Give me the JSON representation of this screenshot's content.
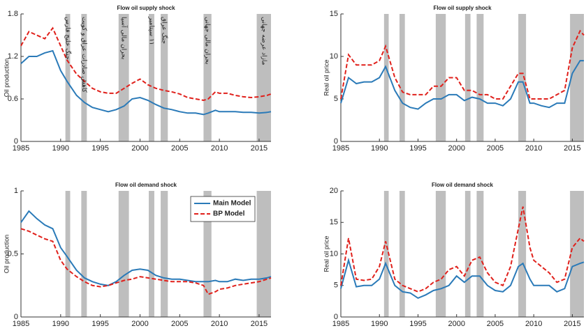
{
  "chart_data": [
    {
      "type": "line",
      "title": "Flow oil supply shock",
      "y_label": "Oil production",
      "x": [
        1985,
        1986,
        1987,
        1988,
        1989,
        1990,
        1990.8,
        1992,
        1993,
        1994,
        1995,
        1996,
        1997,
        1998,
        1999,
        2000,
        2001,
        2002,
        2003,
        2004,
        2005,
        2006,
        2007,
        2008,
        2008.6,
        2009.5,
        2010,
        2011,
        2012,
        2013,
        2014,
        2015,
        2016,
        2016.5
      ],
      "xlim": [
        1985,
        2016.5
      ],
      "xticks": [
        1985,
        1990,
        1995,
        2000,
        2005,
        2010,
        2015
      ],
      "ylim": [
        0,
        1.8
      ],
      "yticks": [
        0,
        0.6,
        1.2,
        1.8
      ],
      "shaded_periods": [
        [
          1990.6,
          1991.2
        ],
        [
          1992.6,
          1993.3
        ],
        [
          1997.3,
          1998.6
        ],
        [
          2001.1,
          2001.8
        ],
        [
          2002.6,
          2003.5
        ],
        [
          2008.0,
          2009.0
        ],
        [
          2014.7,
          2016.5
        ]
      ],
      "annotations": [
        "جنگ خلیج فارس",
        "کاهش صادرات عراق و کویت",
        "بحران مالی آسیا",
        "۱۱ سپتامبر",
        "جنگ عراق",
        "بحران مالی جهانی",
        "مازاد عرضه جهانی"
      ],
      "series": [
        {
          "color": "#2a7ab8",
          "style": "solid",
          "values": [
            1.1,
            1.2,
            1.2,
            1.25,
            1.28,
            1.0,
            0.85,
            0.65,
            0.55,
            0.48,
            0.45,
            0.42,
            0.45,
            0.5,
            0.6,
            0.62,
            0.58,
            0.52,
            0.47,
            0.45,
            0.42,
            0.4,
            0.4,
            0.38,
            0.4,
            0.44,
            0.42,
            0.42,
            0.42,
            0.41,
            0.41,
            0.4,
            0.41,
            0.42
          ]
        },
        {
          "color": "#e0201b",
          "style": "dashed",
          "values": [
            1.35,
            1.55,
            1.5,
            1.45,
            1.6,
            1.35,
            1.15,
            0.95,
            0.85,
            0.75,
            0.7,
            0.68,
            0.68,
            0.75,
            0.82,
            0.88,
            0.8,
            0.75,
            0.72,
            0.7,
            0.67,
            0.62,
            0.6,
            0.58,
            0.6,
            0.7,
            0.68,
            0.68,
            0.65,
            0.63,
            0.62,
            0.63,
            0.65,
            0.67
          ]
        }
      ]
    },
    {
      "type": "line",
      "title": "Flow oil supply shock",
      "y_label": "Real oil price",
      "x": [
        1985,
        1986,
        1987,
        1988,
        1989,
        1990,
        1990.8,
        1992,
        1993,
        1994,
        1995,
        1996,
        1997,
        1998,
        1999,
        2000,
        2001,
        2002,
        2003,
        2004,
        2005,
        2006,
        2007,
        2008,
        2008.6,
        2009.5,
        2010,
        2011,
        2012,
        2013,
        2014,
        2015,
        2016,
        2016.5
      ],
      "xlim": [
        1985,
        2016.5
      ],
      "xticks": [
        1985,
        1990,
        1995,
        2000,
        2005,
        2010,
        2015
      ],
      "ylim": [
        0,
        15
      ],
      "yticks": [
        0,
        5,
        10,
        15
      ],
      "shaded_periods": [
        [
          1990.6,
          1991.2
        ],
        [
          1992.6,
          1993.3
        ],
        [
          1997.3,
          1998.6
        ],
        [
          2001.1,
          2001.8
        ],
        [
          2002.6,
          2003.5
        ],
        [
          2008.0,
          2009.0
        ],
        [
          2014.7,
          2016.5
        ]
      ],
      "series": [
        {
          "color": "#2a7ab8",
          "style": "solid",
          "values": [
            4.5,
            7.5,
            6.8,
            7,
            7,
            7.5,
            8.8,
            6,
            4.5,
            4,
            3.8,
            4.5,
            5,
            5,
            5.5,
            5.5,
            4.8,
            5.2,
            5,
            4.5,
            4.5,
            4.2,
            5,
            7,
            7,
            4.5,
            4.5,
            4.2,
            4,
            4.5,
            4.5,
            8,
            9.5,
            9.5
          ]
        },
        {
          "color": "#e0201b",
          "style": "dashed",
          "values": [
            5,
            10.2,
            9,
            9,
            9,
            9.5,
            11.2,
            7.5,
            5.8,
            5.5,
            5.5,
            5.5,
            6.5,
            6.5,
            7.5,
            7.5,
            6,
            6,
            5.5,
            5.5,
            5,
            5,
            6.5,
            8,
            8,
            5,
            5,
            5,
            5,
            5.5,
            6,
            11,
            13,
            12.5
          ]
        }
      ]
    },
    {
      "type": "line",
      "title": "Flow oil demand shock",
      "y_label": "Oil production",
      "legend": true,
      "x": [
        1985,
        1986,
        1987,
        1988,
        1989,
        1990,
        1990.8,
        1992,
        1993,
        1994,
        1995,
        1996,
        1997,
        1998,
        1999,
        2000,
        2001,
        2002,
        2003,
        2004,
        2005,
        2006,
        2007,
        2008,
        2008.6,
        2009.5,
        2010,
        2011,
        2012,
        2013,
        2014,
        2015,
        2016,
        2016.5
      ],
      "xlim": [
        1985,
        2016.5
      ],
      "xticks": [
        1985,
        1990,
        1995,
        2000,
        2005,
        2010,
        2015
      ],
      "ylim": [
        0,
        1
      ],
      "yticks": [
        0,
        0.5,
        1
      ],
      "shaded_periods": [
        [
          1990.6,
          1991.2
        ],
        [
          1992.6,
          1993.3
        ],
        [
          1997.3,
          1998.6
        ],
        [
          2001.1,
          2001.8
        ],
        [
          2002.6,
          2003.5
        ],
        [
          2008.0,
          2009.0
        ],
        [
          2014.7,
          2016.5
        ]
      ],
      "series": [
        {
          "name": "Main Model",
          "color": "#2a7ab8",
          "style": "solid",
          "values": [
            0.75,
            0.84,
            0.78,
            0.73,
            0.7,
            0.55,
            0.48,
            0.37,
            0.31,
            0.28,
            0.26,
            0.25,
            0.28,
            0.33,
            0.37,
            0.38,
            0.37,
            0.33,
            0.31,
            0.3,
            0.3,
            0.29,
            0.28,
            0.28,
            0.28,
            0.29,
            0.28,
            0.28,
            0.3,
            0.29,
            0.3,
            0.3,
            0.31,
            0.32
          ]
        },
        {
          "name": "BP Model",
          "color": "#e0201b",
          "style": "dashed",
          "values": [
            0.7,
            0.68,
            0.65,
            0.62,
            0.6,
            0.45,
            0.38,
            0.32,
            0.28,
            0.25,
            0.24,
            0.25,
            0.27,
            0.29,
            0.3,
            0.32,
            0.31,
            0.3,
            0.29,
            0.28,
            0.28,
            0.28,
            0.27,
            0.25,
            0.18,
            0.2,
            0.22,
            0.23,
            0.25,
            0.26,
            0.27,
            0.28,
            0.3,
            0.31
          ]
        }
      ]
    },
    {
      "type": "line",
      "title": "Flow oil demand shock",
      "y_label": "Real oil price",
      "x": [
        1985,
        1986,
        1987,
        1988,
        1989,
        1990,
        1990.8,
        1992,
        1993,
        1994,
        1995,
        1996,
        1997,
        1998,
        1999,
        2000,
        2001,
        2002,
        2003,
        2004,
        2005,
        2006,
        2007,
        2008,
        2008.6,
        2009.5,
        2010,
        2011,
        2012,
        2013,
        2014,
        2015,
        2016,
        2016.5
      ],
      "xlim": [
        1985,
        2016.5
      ],
      "xticks": [
        1985,
        1990,
        1995,
        2000,
        2005,
        2010,
        2015
      ],
      "ylim": [
        0,
        20
      ],
      "yticks": [
        0,
        5,
        10,
        15,
        20
      ],
      "shaded_periods": [
        [
          1990.6,
          1991.2
        ],
        [
          1992.6,
          1993.3
        ],
        [
          1997.3,
          1998.6
        ],
        [
          2001.1,
          2001.8
        ],
        [
          2002.6,
          2003.5
        ],
        [
          2008.0,
          2009.0
        ],
        [
          2014.7,
          2016.5
        ]
      ],
      "series": [
        {
          "color": "#2a7ab8",
          "style": "solid",
          "values": [
            4.5,
            9,
            4.8,
            5,
            5,
            6,
            8.5,
            5,
            4,
            3.8,
            3,
            3.5,
            4.2,
            4.5,
            5,
            6.5,
            5.5,
            6.5,
            6.5,
            5,
            4.2,
            4,
            5,
            8,
            8.5,
            6,
            5,
            5,
            5,
            4,
            4.5,
            8,
            8.5,
            8.7
          ]
        },
        {
          "color": "#e0201b",
          "style": "dashed",
          "values": [
            5,
            12.5,
            6,
            5.8,
            6,
            8,
            12,
            6,
            5,
            4.5,
            4,
            4.5,
            5.5,
            6,
            7.5,
            8,
            6.5,
            9,
            9.5,
            7,
            5.5,
            5,
            8,
            14,
            17.5,
            11,
            9,
            8,
            7,
            5.5,
            6,
            11,
            12.5,
            12
          ]
        }
      ]
    }
  ]
}
